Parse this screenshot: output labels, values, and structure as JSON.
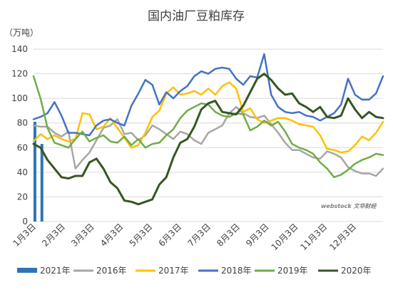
{
  "chart_data": {
    "type": "line",
    "title": "国内油厂豆粕库存",
    "ylabel": "（万吨）",
    "ylim": [
      0,
      140
    ],
    "yticks": [
      0,
      20,
      40,
      60,
      80,
      100,
      120,
      140
    ],
    "x_ticks": [
      "1月3日",
      "2月3日",
      "3月3日",
      "4月3日",
      "5月3日",
      "6月3日",
      "7月3日",
      "8月3日",
      "9月3日",
      "10月3日",
      "11月3日",
      "12月3日"
    ],
    "grid": "horizontal",
    "legend_position": "bottom",
    "watermark": "webstock 文华财经",
    "series": [
      {
        "name": "2021年",
        "type": "bar",
        "color": "#2e75b6",
        "x": [
          1.2,
          2.2
        ],
        "values": [
          81,
          63
        ]
      },
      {
        "name": "2016年",
        "color": "#a6a6a6",
        "x": [
          1,
          2,
          3,
          4,
          5,
          6,
          7,
          8,
          9,
          10,
          11,
          12,
          13,
          14,
          15,
          16,
          17,
          18,
          19,
          20,
          21,
          22,
          23,
          24,
          25,
          26,
          27,
          28,
          29,
          30,
          31,
          32,
          33,
          34,
          35,
          36,
          37,
          38,
          39,
          40,
          41,
          42,
          43,
          44,
          45,
          46,
          47,
          48,
          49,
          50,
          51
        ],
        "values": [
          78,
          77,
          77,
          72,
          69,
          73,
          43,
          50,
          56,
          66,
          76,
          78,
          83,
          71,
          72,
          66,
          70,
          78,
          75,
          71,
          67,
          73,
          71,
          66,
          63,
          72,
          75,
          78,
          88,
          93,
          88,
          85,
          84,
          86,
          79,
          72,
          64,
          58,
          58,
          55,
          52,
          51,
          57,
          55,
          52,
          44,
          41,
          39,
          39,
          37,
          43
        ]
      },
      {
        "name": "2017年",
        "color": "#ffc000",
        "x": [
          1,
          2,
          3,
          4,
          5,
          6,
          7,
          8,
          9,
          10,
          11,
          12,
          13,
          14,
          15,
          16,
          17,
          18,
          19,
          20,
          21,
          22,
          23,
          24,
          25,
          26,
          27,
          28,
          29,
          30,
          31,
          32,
          33,
          34,
          35,
          36,
          37,
          38,
          39,
          40,
          41,
          42,
          43,
          44,
          45,
          46,
          47,
          48,
          49,
          50,
          51
        ],
        "values": [
          65,
          71,
          67,
          70,
          67,
          65,
          67,
          88,
          87,
          75,
          77,
          84,
          76,
          68,
          60,
          62,
          72,
          85,
          90,
          104,
          109,
          103,
          104,
          106,
          103,
          108,
          103,
          110,
          113,
          108,
          89,
          92,
          83,
          80,
          82,
          84,
          84,
          82,
          79,
          78,
          77,
          70,
          59,
          58,
          56,
          57,
          62,
          69,
          66,
          72,
          81
        ]
      },
      {
        "name": "2018年",
        "color": "#4472c4",
        "x": [
          1,
          2,
          3,
          4,
          5,
          6,
          7,
          8,
          9,
          10,
          11,
          12,
          13,
          14,
          15,
          16,
          17,
          18,
          19,
          20,
          21,
          22,
          23,
          24,
          25,
          26,
          27,
          28,
          29,
          30,
          31,
          32,
          33,
          34,
          35,
          36,
          37,
          38,
          39,
          40,
          41,
          42,
          43,
          44,
          45,
          46,
          47,
          48,
          49,
          50,
          51
        ],
        "values": [
          83,
          85,
          88,
          97,
          86,
          72,
          72,
          71,
          70,
          78,
          82,
          83,
          80,
          78,
          94,
          104,
          115,
          111,
          95,
          105,
          100,
          106,
          110,
          118,
          122,
          120,
          124,
          125,
          124,
          116,
          111,
          118,
          117,
          136,
          103,
          93,
          89,
          88,
          89,
          86,
          85,
          82,
          85,
          88,
          95,
          116,
          103,
          99,
          99,
          104,
          118
        ]
      },
      {
        "name": "2019年",
        "color": "#70ad47",
        "x": [
          1,
          2,
          3,
          4,
          5,
          6,
          7,
          8,
          9,
          10,
          11,
          12,
          13,
          14,
          15,
          16,
          17,
          18,
          19,
          20,
          21,
          22,
          23,
          24,
          25,
          26,
          27,
          28,
          29,
          30,
          31,
          32,
          33,
          34,
          35,
          36,
          37,
          38,
          39,
          40,
          41,
          42,
          43,
          44,
          45,
          46,
          47,
          48,
          49,
          50,
          51
        ],
        "values": [
          118,
          100,
          76,
          64,
          62,
          60,
          67,
          73,
          65,
          68,
          70,
          65,
          64,
          69,
          62,
          67,
          60,
          63,
          64,
          70,
          75,
          84,
          90,
          93,
          96,
          95,
          89,
          86,
          85,
          88,
          87,
          74,
          77,
          82,
          78,
          81,
          73,
          63,
          60,
          58,
          55,
          48,
          43,
          36,
          38,
          42,
          47,
          50,
          52,
          55,
          54
        ]
      },
      {
        "name": "2020年",
        "color": "#375623",
        "x": [
          1,
          2,
          3,
          4,
          5,
          6,
          7,
          8,
          9,
          10,
          11,
          12,
          13,
          14,
          15,
          16,
          17,
          18,
          19,
          20,
          21,
          22,
          23,
          24,
          25,
          26,
          27,
          28,
          29,
          30,
          31,
          32,
          33,
          34,
          35,
          36,
          37,
          38,
          39,
          40,
          41,
          42,
          43,
          44,
          45,
          46,
          47,
          48,
          49,
          50,
          51
        ],
        "values": [
          63,
          60,
          50,
          43,
          36,
          35,
          37,
          37,
          48,
          51,
          43,
          32,
          27,
          17,
          16,
          14,
          16,
          18,
          30,
          36,
          52,
          64,
          67,
          77,
          91,
          96,
          98,
          89,
          88,
          87,
          94,
          105,
          116,
          120,
          115,
          108,
          103,
          104,
          96,
          93,
          89,
          93,
          85,
          84,
          86,
          100,
          91,
          84,
          89,
          85,
          84
        ]
      }
    ]
  }
}
